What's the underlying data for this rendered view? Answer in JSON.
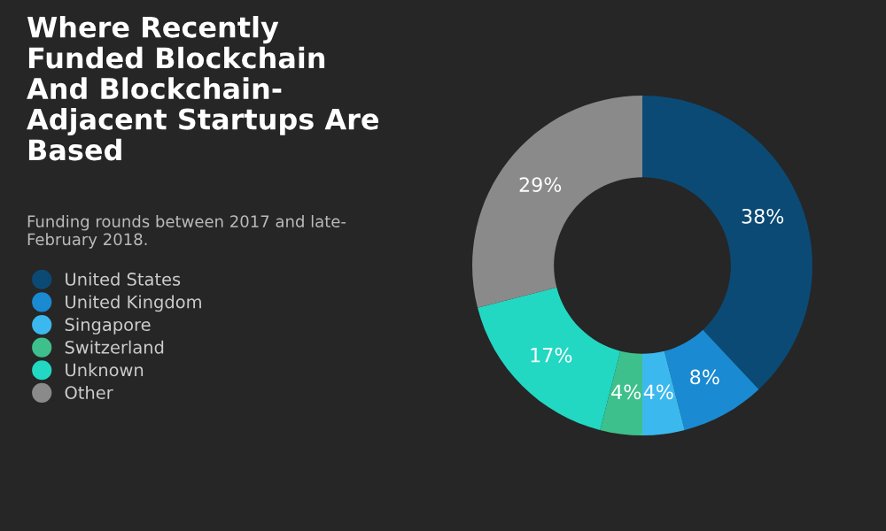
{
  "chart_data": {
    "type": "donut",
    "title": "Where Recently\nFunded Blockchain\nAnd Blockchain-\nAdjacent Startups Are\nBased",
    "subtitle": "Funding rounds between 2017 and late-\nFebruary 2018.",
    "categories": [
      "United States",
      "United Kingdom",
      "Singapore",
      "Switzerland",
      "Unknown",
      "Other"
    ],
    "values": [
      38,
      8,
      4,
      4,
      17,
      29
    ],
    "value_labels": [
      "38%",
      "8%",
      "4%",
      "4%",
      "17%",
      "29%"
    ],
    "colors": [
      "#0b4a75",
      "#1a8ad2",
      "#3bb9ee",
      "#3ec08c",
      "#22d8c2",
      "#8a8a8a"
    ],
    "legend": "left"
  }
}
